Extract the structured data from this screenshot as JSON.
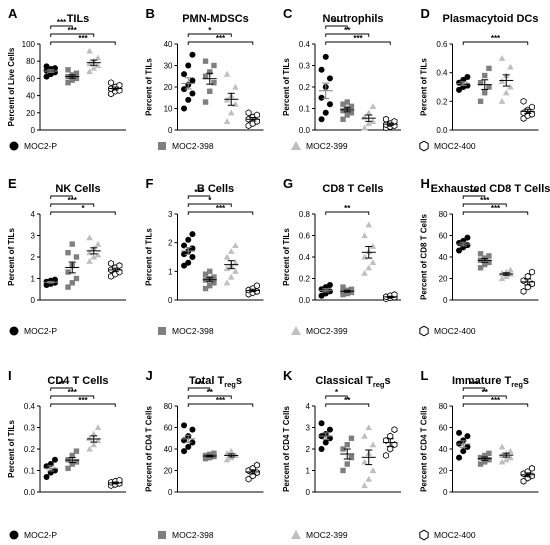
{
  "groups": [
    "MOC2-P",
    "MOC2-398",
    "MOC2-399",
    "MOC2-400"
  ],
  "colors": {
    "MOC2-P": "#000000",
    "MOC2-398": "#7f7f7f",
    "MOC2-399": "#bfbfbf",
    "MOC2-400": "#ffffff"
  },
  "chart_data": [
    {
      "letter": "A",
      "title": "TILs",
      "ylabel": "Percent of Live Cells",
      "type": "scatter",
      "ylim": [
        0,
        100
      ],
      "yticks": [
        0,
        20,
        40,
        60,
        80,
        100
      ],
      "series": [
        {
          "name": "MOC2-P",
          "values": [
            62,
            65,
            67,
            69,
            71,
            72,
            74
          ]
        },
        {
          "name": "MOC2-398",
          "values": [
            55,
            58,
            60,
            62,
            64,
            66,
            70
          ]
        },
        {
          "name": "MOC2-399",
          "values": [
            68,
            72,
            75,
            77,
            80,
            84,
            92
          ]
        },
        {
          "name": "MOC2-400",
          "values": [
            42,
            45,
            46,
            48,
            50,
            52,
            55
          ]
        }
      ],
      "brackets": [
        {
          "from": 0,
          "to": 1,
          "label": "***"
        },
        {
          "from": 0,
          "to": 2,
          "label": "***"
        },
        {
          "from": 0,
          "to": 3,
          "label": "***"
        }
      ]
    },
    {
      "letter": "B",
      "title": "PMN-MDSCs",
      "ylabel": "Percent of TILs",
      "type": "scatter",
      "ylim": [
        0,
        40
      ],
      "yticks": [
        0,
        10,
        20,
        30,
        40
      ],
      "series": [
        {
          "name": "MOC2-P",
          "values": [
            10,
            14,
            17,
            19,
            21,
            23,
            26,
            30,
            35
          ]
        },
        {
          "name": "MOC2-398",
          "values": [
            13,
            18,
            22,
            25,
            27,
            30,
            32
          ]
        },
        {
          "name": "MOC2-399",
          "values": [
            4,
            8,
            12,
            14,
            16,
            20,
            26
          ]
        },
        {
          "name": "MOC2-400",
          "values": [
            2,
            3,
            4,
            5,
            6,
            7,
            8
          ]
        }
      ],
      "brackets": [
        {
          "from": 0,
          "to": 2,
          "label": "*"
        },
        {
          "from": 0,
          "to": 3,
          "label": "***"
        }
      ]
    },
    {
      "letter": "C",
      "title": "Neutrophils",
      "ylabel": "Percent of TILs",
      "type": "scatter",
      "ylim": [
        0,
        0.4
      ],
      "yticks": [
        0.0,
        0.1,
        0.2,
        0.3,
        0.4
      ],
      "series": [
        {
          "name": "MOC2-P",
          "values": [
            0.05,
            0.08,
            0.12,
            0.15,
            0.2,
            0.24,
            0.28,
            0.34
          ]
        },
        {
          "name": "MOC2-398",
          "values": [
            0.05,
            0.07,
            0.08,
            0.09,
            0.1,
            0.11,
            0.12,
            0.13
          ]
        },
        {
          "name": "MOC2-399",
          "values": [
            0.01,
            0.03,
            0.04,
            0.06,
            0.08,
            0.11
          ]
        },
        {
          "name": "MOC2-400",
          "values": [
            0.01,
            0.015,
            0.02,
            0.025,
            0.03,
            0.04,
            0.05
          ]
        }
      ],
      "brackets": [
        {
          "from": 0,
          "to": 1,
          "label": "**"
        },
        {
          "from": 0,
          "to": 2,
          "label": "**"
        },
        {
          "from": 0,
          "to": 3,
          "label": "***"
        }
      ]
    },
    {
      "letter": "D",
      "title": "Plasmacytoid DCs",
      "ylabel": "Percent of TILs",
      "type": "scatter",
      "ylim": [
        0,
        0.6
      ],
      "yticks": [
        0.0,
        0.2,
        0.4,
        0.6
      ],
      "series": [
        {
          "name": "MOC2-P",
          "values": [
            0.28,
            0.3,
            0.31,
            0.33,
            0.35,
            0.37
          ]
        },
        {
          "name": "MOC2-398",
          "values": [
            0.2,
            0.26,
            0.3,
            0.33,
            0.38,
            0.43
          ]
        },
        {
          "name": "MOC2-399",
          "values": [
            0.2,
            0.26,
            0.3,
            0.34,
            0.38,
            0.44,
            0.5
          ]
        },
        {
          "name": "MOC2-400",
          "values": [
            0.08,
            0.1,
            0.11,
            0.12,
            0.14,
            0.16,
            0.2
          ]
        }
      ],
      "brackets": [
        {
          "from": 0,
          "to": 3,
          "label": "***"
        }
      ]
    },
    {
      "letter": "E",
      "title": "NK Cells",
      "ylabel": "Percent of TILs",
      "type": "scatter",
      "ylim": [
        0,
        4
      ],
      "yticks": [
        0,
        1,
        2,
        3,
        4
      ],
      "series": [
        {
          "name": "MOC2-P",
          "values": [
            0.7,
            0.75,
            0.8,
            0.85,
            0.9,
            0.95
          ]
        },
        {
          "name": "MOC2-398",
          "values": [
            0.6,
            0.8,
            1.0,
            1.3,
            1.6,
            2.0,
            2.2,
            2.6
          ]
        },
        {
          "name": "MOC2-399",
          "values": [
            1.8,
            2.0,
            2.1,
            2.2,
            2.4,
            2.6,
            2.9
          ]
        },
        {
          "name": "MOC2-400",
          "values": [
            1.1,
            1.2,
            1.3,
            1.4,
            1.5,
            1.6,
            1.7
          ]
        }
      ],
      "brackets": [
        {
          "from": 0,
          "to": 1,
          "label": "*"
        },
        {
          "from": 0,
          "to": 2,
          "label": "***"
        },
        {
          "from": 0,
          "to": 3,
          "label": "*"
        }
      ]
    },
    {
      "letter": "F",
      "title": "B Cells",
      "ylabel": "Percent of TILs",
      "type": "scatter",
      "ylim": [
        0,
        3
      ],
      "yticks": [
        0,
        1,
        2,
        3
      ],
      "series": [
        {
          "name": "MOC2-P",
          "values": [
            1.2,
            1.3,
            1.5,
            1.6,
            1.7,
            1.8,
            1.9,
            2.1,
            2.3
          ]
        },
        {
          "name": "MOC2-398",
          "values": [
            0.4,
            0.5,
            0.6,
            0.7,
            0.75,
            0.8,
            0.9,
            1.0
          ]
        },
        {
          "name": "MOC2-399",
          "values": [
            0.6,
            0.8,
            1.0,
            1.1,
            1.2,
            1.3,
            1.5,
            1.7,
            1.9
          ]
        },
        {
          "name": "MOC2-400",
          "values": [
            0.2,
            0.25,
            0.3,
            0.35,
            0.4,
            0.5
          ]
        }
      ],
      "brackets": [
        {
          "from": 0,
          "to": 1,
          "label": "***"
        },
        {
          "from": 0,
          "to": 2,
          "label": "*"
        },
        {
          "from": 0,
          "to": 3,
          "label": "***"
        }
      ]
    },
    {
      "letter": "G",
      "title": "CD8 T Cells",
      "ylabel": "Percent of TILs",
      "type": "scatter",
      "ylim": [
        0,
        0.8
      ],
      "yticks": [
        0.0,
        0.2,
        0.4,
        0.6,
        0.8
      ],
      "series": [
        {
          "name": "MOC2-P",
          "values": [
            0.04,
            0.06,
            0.08,
            0.1,
            0.12,
            0.14
          ]
        },
        {
          "name": "MOC2-398",
          "values": [
            0.05,
            0.06,
            0.07,
            0.08,
            0.09,
            0.1,
            0.12
          ]
        },
        {
          "name": "MOC2-399",
          "values": [
            0.25,
            0.3,
            0.35,
            0.4,
            0.45,
            0.5,
            0.6,
            0.7
          ]
        },
        {
          "name": "MOC2-400",
          "values": [
            0.01,
            0.02,
            0.025,
            0.03,
            0.04,
            0.05
          ]
        }
      ],
      "brackets": [
        {
          "from": 0,
          "to": 2,
          "label": "**"
        }
      ]
    },
    {
      "letter": "H",
      "title": "Exhausted CD8 T Cells",
      "ylabel": "Percent of CD8 T Cells",
      "type": "scatter",
      "ylim": [
        0,
        80
      ],
      "yticks": [
        0,
        20,
        40,
        60,
        80
      ],
      "series": [
        {
          "name": "MOC2-P",
          "values": [
            46,
            49,
            51,
            53,
            55,
            58
          ]
        },
        {
          "name": "MOC2-398",
          "values": [
            30,
            33,
            35,
            37,
            39,
            41,
            43
          ]
        },
        {
          "name": "MOC2-399",
          "values": [
            20,
            22,
            24,
            25,
            26,
            28
          ]
        },
        {
          "name": "MOC2-400",
          "values": [
            8,
            12,
            15,
            18,
            22,
            26
          ]
        }
      ],
      "brackets": [
        {
          "from": 0,
          "to": 1,
          "label": "***"
        },
        {
          "from": 0,
          "to": 2,
          "label": "***"
        },
        {
          "from": 0,
          "to": 3,
          "label": "***"
        }
      ]
    },
    {
      "letter": "I",
      "title": "CD4 T Cells",
      "ylabel": "Percent of TILs",
      "type": "scatter",
      "ylim": [
        0,
        0.4
      ],
      "yticks": [
        0.0,
        0.1,
        0.2,
        0.3,
        0.4
      ],
      "series": [
        {
          "name": "MOC2-P",
          "values": [
            0.07,
            0.09,
            0.1,
            0.12,
            0.13,
            0.15
          ]
        },
        {
          "name": "MOC2-398",
          "values": [
            0.11,
            0.13,
            0.14,
            0.15,
            0.17,
            0.19
          ]
        },
        {
          "name": "MOC2-399",
          "values": [
            0.2,
            0.22,
            0.24,
            0.25,
            0.27,
            0.3
          ]
        },
        {
          "name": "MOC2-400",
          "values": [
            0.03,
            0.035,
            0.04,
            0.045,
            0.05,
            0.055
          ]
        }
      ],
      "brackets": [
        {
          "from": 0,
          "to": 1,
          "label": "**"
        },
        {
          "from": 0,
          "to": 2,
          "label": "***"
        },
        {
          "from": 0,
          "to": 3,
          "label": "***"
        }
      ]
    },
    {
      "letter": "J",
      "title": "Total T",
      "title_sub": "reg",
      "title_end": "s",
      "ylabel": "Percent of CD4 T Cells",
      "type": "scatter",
      "ylim": [
        0,
        80
      ],
      "yticks": [
        0,
        20,
        40,
        60,
        80
      ],
      "series": [
        {
          "name": "MOC2-P",
          "values": [
            38,
            42,
            46,
            48,
            52,
            58,
            62
          ]
        },
        {
          "name": "MOC2-398",
          "values": [
            31,
            32,
            33,
            34,
            35,
            36
          ]
        },
        {
          "name": "MOC2-399",
          "values": [
            30,
            32,
            34,
            36,
            38
          ]
        },
        {
          "name": "MOC2-400",
          "values": [
            12,
            15,
            18,
            20,
            22,
            25
          ]
        }
      ],
      "brackets": [
        {
          "from": 0,
          "to": 1,
          "label": "***"
        },
        {
          "from": 0,
          "to": 2,
          "label": "**"
        },
        {
          "from": 0,
          "to": 3,
          "label": "***"
        }
      ]
    },
    {
      "letter": "K",
      "title": "Classical T",
      "title_sub": "reg",
      "title_end": "s",
      "ylabel": "Percent of CD4 T Cells",
      "type": "scatter",
      "ylim": [
        0,
        4
      ],
      "yticks": [
        0,
        1,
        2,
        3,
        4
      ],
      "series": [
        {
          "name": "MOC2-P",
          "values": [
            2.0,
            2.3,
            2.5,
            2.6,
            2.7,
            2.9,
            3.2
          ]
        },
        {
          "name": "MOC2-398",
          "values": [
            1.0,
            1.3,
            1.6,
            2.0,
            2.2,
            2.5
          ]
        },
        {
          "name": "MOC2-399",
          "values": [
            0.3,
            0.6,
            1.0,
            1.4,
            1.8,
            2.2,
            2.6,
            3.0
          ]
        },
        {
          "name": "MOC2-400",
          "values": [
            1.7,
            2.0,
            2.2,
            2.4,
            2.6,
            2.9
          ]
        }
      ],
      "brackets": [
        {
          "from": 0,
          "to": 1,
          "label": "*"
        },
        {
          "from": 0,
          "to": 2,
          "label": "**"
        }
      ]
    },
    {
      "letter": "L",
      "title": "Immature T",
      "title_sub": "reg",
      "title_end": "s",
      "ylabel": "Percent of CD4 T Cells",
      "type": "scatter",
      "ylim": [
        0,
        80
      ],
      "yticks": [
        0,
        20,
        40,
        60,
        80
      ],
      "series": [
        {
          "name": "MOC2-P",
          "values": [
            32,
            38,
            42,
            45,
            48,
            52,
            55
          ]
        },
        {
          "name": "MOC2-398",
          "values": [
            26,
            28,
            30,
            32,
            34,
            36
          ]
        },
        {
          "name": "MOC2-399",
          "values": [
            28,
            30,
            32,
            34,
            36,
            38,
            42
          ]
        },
        {
          "name": "MOC2-400",
          "values": [
            10,
            13,
            15,
            17,
            19,
            22
          ]
        }
      ],
      "brackets": [
        {
          "from": 0,
          "to": 1,
          "label": "***"
        },
        {
          "from": 0,
          "to": 2,
          "label": "**"
        },
        {
          "from": 0,
          "to": 3,
          "label": "***"
        }
      ]
    }
  ]
}
